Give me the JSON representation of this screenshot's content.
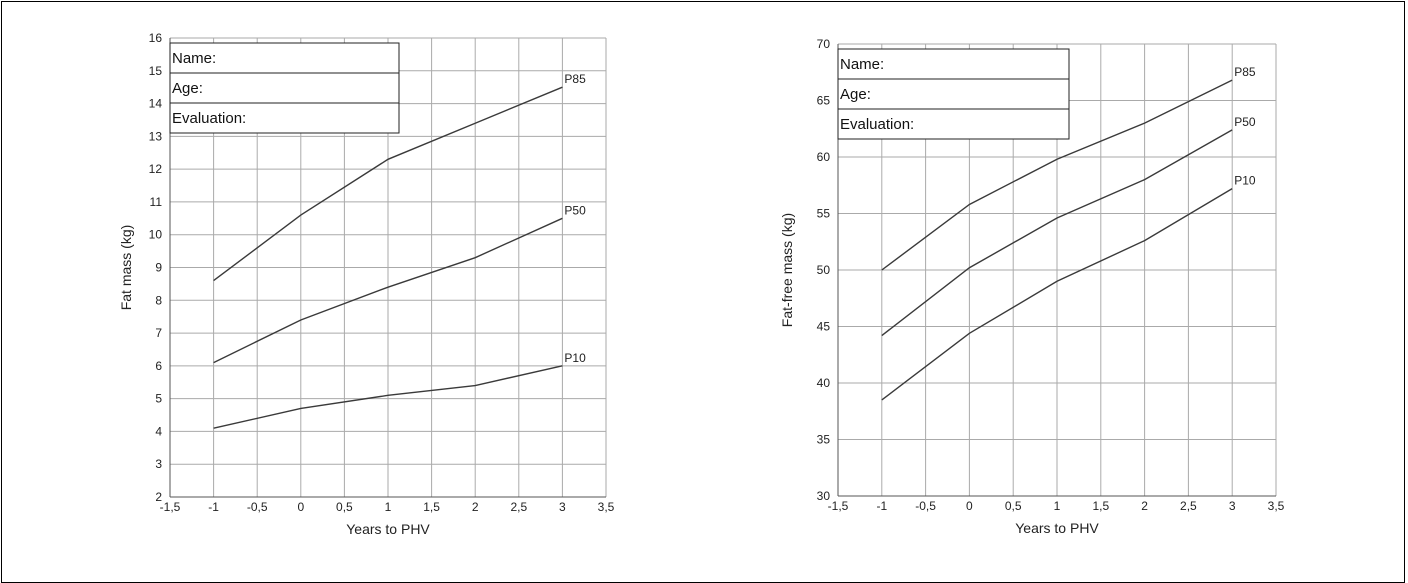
{
  "form_fields": [
    "Name:",
    "Age:",
    "Evaluation:"
  ],
  "chart_data": [
    {
      "type": "line",
      "title": "",
      "xlabel": "Years to PHV",
      "ylabel": "Fat mass (kg)",
      "xlim": [
        -1.5,
        3.5
      ],
      "ylim": [
        2,
        16
      ],
      "x_ticks": [
        -1.5,
        -1,
        -0.5,
        0,
        0.5,
        1,
        1.5,
        2,
        2.5,
        3,
        3.5
      ],
      "x_tick_labels": [
        "-1,5",
        "-1",
        "-0,5",
        "0",
        "0,5",
        "1",
        "1,5",
        "2",
        "2,5",
        "3",
        "3,5"
      ],
      "y_ticks": [
        2,
        3,
        4,
        5,
        6,
        7,
        8,
        9,
        10,
        11,
        12,
        13,
        14,
        15,
        16
      ],
      "y_tick_labels": [
        "2",
        "3",
        "4",
        "5",
        "6",
        "7",
        "8",
        "9",
        "10",
        "11",
        "12",
        "13",
        "14",
        "15",
        "16"
      ],
      "grid": true,
      "x": [
        -1,
        0,
        1,
        2,
        3
      ],
      "series": [
        {
          "name": "P85",
          "values": [
            8.6,
            10.6,
            12.3,
            13.4,
            14.5
          ]
        },
        {
          "name": "P50",
          "values": [
            6.1,
            7.4,
            8.4,
            9.3,
            10.5
          ]
        },
        {
          "name": "P10",
          "values": [
            4.1,
            4.7,
            5.1,
            5.4,
            6.0
          ]
        }
      ]
    },
    {
      "type": "line",
      "title": "",
      "xlabel": "Years to PHV",
      "ylabel": "Fat-free mass (kg)",
      "xlim": [
        -1.5,
        3.5
      ],
      "ylim": [
        30,
        70
      ],
      "x_ticks": [
        -1.5,
        -1,
        -0.5,
        0,
        0.5,
        1,
        1.5,
        2,
        2.5,
        3,
        3.5
      ],
      "x_tick_labels": [
        "-1,5",
        "-1",
        "-0,5",
        "0",
        "0,5",
        "1",
        "1,5",
        "2",
        "2,5",
        "3",
        "3,5"
      ],
      "y_ticks": [
        30,
        35,
        40,
        45,
        50,
        55,
        60,
        65,
        70
      ],
      "y_tick_labels": [
        "30",
        "35",
        "40",
        "45",
        "50",
        "55",
        "60",
        "65",
        "70"
      ],
      "grid": true,
      "x": [
        -1,
        0,
        1,
        2,
        3
      ],
      "series": [
        {
          "name": "P85",
          "values": [
            50.0,
            55.8,
            59.8,
            63.0,
            66.8
          ]
        },
        {
          "name": "P50",
          "values": [
            44.2,
            50.2,
            54.6,
            58.0,
            62.4
          ]
        },
        {
          "name": "P10",
          "values": [
            38.5,
            44.4,
            49.0,
            52.6,
            57.2
          ]
        }
      ]
    }
  ]
}
